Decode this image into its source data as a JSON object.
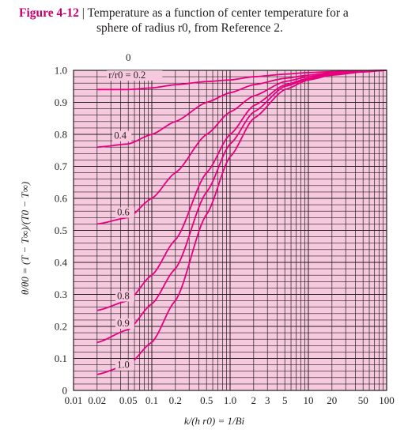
{
  "caption": {
    "figure_label": "Figure 4-12",
    "separator": "|",
    "text_line1": "Temperature as a function of center temperature for a",
    "text_line2": "sphere of radius r0, from Reference 2."
  },
  "colors": {
    "plot_background": "#f7c9de",
    "curve": "#e6007e",
    "grid": "#231f20",
    "figure_label": "#c3006b"
  },
  "chart_data": {
    "type": "line",
    "title": "",
    "x_scale": "log",
    "xlim": [
      0.01,
      100
    ],
    "ylim": [
      0,
      1.0
    ],
    "x_ticks": [
      0.01,
      0.02,
      0.05,
      0.1,
      0.2,
      0.5,
      1.0,
      2,
      3,
      5,
      10,
      20,
      50,
      100
    ],
    "x_tick_labels": [
      "0.01",
      "0.02",
      "0.05",
      "0.1",
      "0.2",
      "0.5",
      "1.0",
      "2",
      "3",
      "5",
      "10",
      "20",
      "50",
      "100"
    ],
    "y_ticks": [
      0,
      0.1,
      0.2,
      0.3,
      0.4,
      0.5,
      0.6,
      0.7,
      0.8,
      0.9,
      1.0
    ],
    "y_tick_labels": [
      "0",
      "0.1",
      "0.2",
      "0.3",
      "0.4",
      "0.5",
      "0.6",
      "0.7",
      "0.8",
      "0.9",
      "1.0"
    ],
    "top_label": "0",
    "xlabel": "k/(h r0) = 1/Bi",
    "ylabel": "θ/θ0 = (T − T∞)/(T0 − T∞)",
    "grid": true,
    "series": [
      {
        "name": "r/r0 = 0.2",
        "x": [
          0.02,
          0.05,
          0.1,
          0.2,
          0.5,
          1.0,
          2,
          5,
          10,
          20,
          50,
          100
        ],
        "y": [
          0.94,
          0.94,
          0.945,
          0.955,
          0.965,
          0.97,
          0.98,
          0.988,
          0.993,
          0.996,
          0.999,
          1.0
        ]
      },
      {
        "name": "0.4",
        "x": [
          0.02,
          0.05,
          0.1,
          0.2,
          0.5,
          1.0,
          2,
          5,
          10,
          20,
          50,
          100
        ],
        "y": [
          0.76,
          0.77,
          0.8,
          0.84,
          0.9,
          0.93,
          0.955,
          0.975,
          0.985,
          0.993,
          0.998,
          1.0
        ]
      },
      {
        "name": "0.6",
        "x": [
          0.02,
          0.05,
          0.1,
          0.2,
          0.5,
          1.0,
          2,
          5,
          10,
          20,
          50,
          100
        ],
        "y": [
          0.52,
          0.54,
          0.6,
          0.68,
          0.8,
          0.87,
          0.92,
          0.965,
          0.98,
          0.99,
          0.997,
          1.0
        ]
      },
      {
        "name": "0.8",
        "x": [
          0.02,
          0.05,
          0.1,
          0.2,
          0.5,
          1.0,
          2,
          5,
          10,
          20,
          50,
          100
        ],
        "y": [
          0.25,
          0.28,
          0.36,
          0.47,
          0.68,
          0.8,
          0.89,
          0.955,
          0.975,
          0.988,
          0.996,
          1.0
        ]
      },
      {
        "name": "0.9",
        "x": [
          0.02,
          0.05,
          0.1,
          0.2,
          0.5,
          1.0,
          2,
          5,
          10,
          20,
          50,
          100
        ],
        "y": [
          0.15,
          0.19,
          0.27,
          0.38,
          0.62,
          0.77,
          0.87,
          0.95,
          0.973,
          0.987,
          0.996,
          1.0
        ]
      },
      {
        "name": "1.0",
        "x": [
          0.02,
          0.05,
          0.1,
          0.2,
          0.5,
          1.0,
          2,
          5,
          10,
          20,
          50,
          100
        ],
        "y": [
          0.05,
          0.08,
          0.15,
          0.28,
          0.55,
          0.73,
          0.85,
          0.94,
          0.97,
          0.985,
          0.995,
          1.0
        ]
      }
    ]
  }
}
